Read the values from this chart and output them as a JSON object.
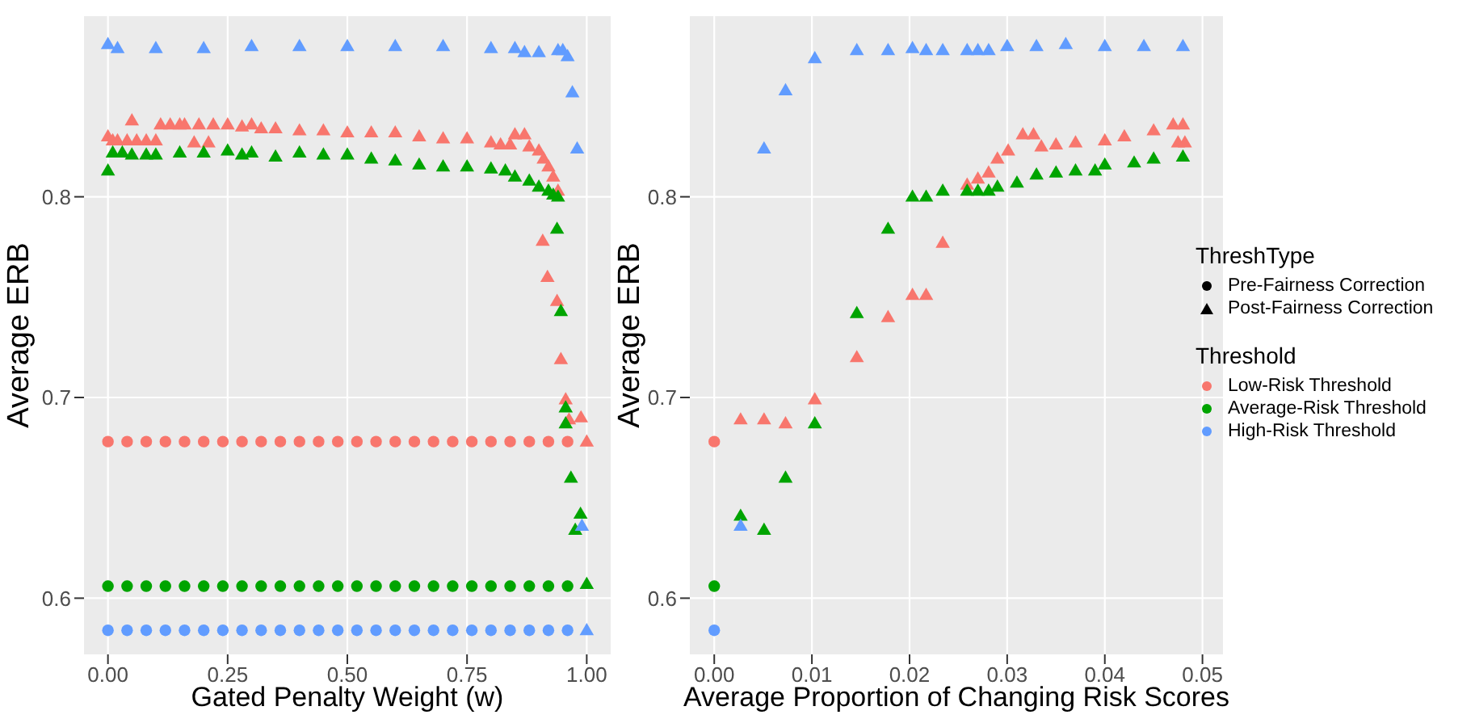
{
  "chart_data": [
    {
      "type": "scatter",
      "xlabel": "Gated Penalty Weight (w)",
      "ylabel": "Average ERB",
      "xlim": [
        -0.05,
        1.05
      ],
      "ylim": [
        0.572,
        0.89
      ],
      "xticks": [
        {
          "value": 0,
          "label": "0.00"
        },
        {
          "value": 0.25,
          "label": "0.25"
        },
        {
          "value": 0.5,
          "label": "0.50"
        },
        {
          "value": 0.75,
          "label": "0.75"
        },
        {
          "value": 1,
          "label": "1.00"
        }
      ],
      "yticks": [
        0.6,
        0.7,
        0.8
      ],
      "grid": true,
      "series": [
        {
          "color": "#f8766d",
          "marker": "circle",
          "x": [
            0,
            0.04,
            0.08,
            0.12,
            0.16,
            0.2,
            0.24,
            0.28,
            0.32,
            0.36,
            0.4,
            0.44,
            0.48,
            0.52,
            0.56,
            0.6,
            0.64,
            0.68,
            0.72,
            0.76,
            0.8,
            0.84,
            0.88,
            0.92,
            0.96
          ],
          "values": [
            0.678,
            0.678,
            0.678,
            0.678,
            0.678,
            0.678,
            0.678,
            0.678,
            0.678,
            0.678,
            0.678,
            0.678,
            0.678,
            0.678,
            0.678,
            0.678,
            0.678,
            0.678,
            0.678,
            0.678,
            0.678,
            0.678,
            0.678,
            0.678,
            0.678
          ]
        },
        {
          "color": "#00a400",
          "marker": "circle",
          "x": [
            0,
            0.04,
            0.08,
            0.12,
            0.16,
            0.2,
            0.24,
            0.28,
            0.32,
            0.36,
            0.4,
            0.44,
            0.48,
            0.52,
            0.56,
            0.6,
            0.64,
            0.68,
            0.72,
            0.76,
            0.8,
            0.84,
            0.88,
            0.92,
            0.96
          ],
          "values": [
            0.606,
            0.606,
            0.606,
            0.606,
            0.606,
            0.606,
            0.606,
            0.606,
            0.606,
            0.606,
            0.606,
            0.606,
            0.606,
            0.606,
            0.606,
            0.606,
            0.606,
            0.606,
            0.606,
            0.606,
            0.606,
            0.606,
            0.606,
            0.606,
            0.606
          ]
        },
        {
          "color": "#619cff",
          "marker": "circle",
          "x": [
            0,
            0.04,
            0.08,
            0.12,
            0.16,
            0.2,
            0.24,
            0.28,
            0.32,
            0.36,
            0.4,
            0.44,
            0.48,
            0.52,
            0.56,
            0.6,
            0.64,
            0.68,
            0.72,
            0.76,
            0.8,
            0.84,
            0.88,
            0.92,
            0.96
          ],
          "values": [
            0.584,
            0.584,
            0.584,
            0.584,
            0.584,
            0.584,
            0.584,
            0.584,
            0.584,
            0.584,
            0.584,
            0.584,
            0.584,
            0.584,
            0.584,
            0.584,
            0.584,
            0.584,
            0.584,
            0.584,
            0.584,
            0.584,
            0.584,
            0.584,
            0.584
          ]
        },
        {
          "color": "#f8766d",
          "marker": "triangle",
          "x": [
            0,
            0.01,
            0.02,
            0.04,
            0.05,
            0.06,
            0.08,
            0.1,
            0.11,
            0.13,
            0.15,
            0.16,
            0.18,
            0.19,
            0.21,
            0.22,
            0.25,
            0.28,
            0.3,
            0.32,
            0.35,
            0.4,
            0.45,
            0.5,
            0.55,
            0.6,
            0.65,
            0.7,
            0.75,
            0.8,
            0.82,
            0.84,
            0.85,
            0.87,
            0.88,
            0.9,
            0.91,
            0.92,
            0.93,
            0.94,
            0.908,
            0.918,
            0.938,
            0.946,
            0.956,
            0.963,
            0.988,
            1.0
          ],
          "values": [
            0.83,
            0.828,
            0.828,
            0.828,
            0.838,
            0.828,
            0.828,
            0.828,
            0.836,
            0.836,
            0.836,
            0.836,
            0.827,
            0.836,
            0.827,
            0.836,
            0.836,
            0.835,
            0.836,
            0.834,
            0.834,
            0.833,
            0.833,
            0.832,
            0.832,
            0.832,
            0.83,
            0.829,
            0.829,
            0.827,
            0.826,
            0.826,
            0.831,
            0.831,
            0.825,
            0.823,
            0.819,
            0.815,
            0.81,
            0.803,
            0.778,
            0.76,
            0.748,
            0.719,
            0.699,
            0.689,
            0.69,
            0.678
          ]
        },
        {
          "color": "#00a400",
          "marker": "triangle",
          "x": [
            0,
            0.01,
            0.03,
            0.05,
            0.08,
            0.1,
            0.15,
            0.2,
            0.25,
            0.28,
            0.3,
            0.35,
            0.4,
            0.45,
            0.5,
            0.55,
            0.6,
            0.65,
            0.7,
            0.75,
            0.8,
            0.83,
            0.85,
            0.88,
            0.9,
            0.92,
            0.93,
            0.94,
            0.938,
            0.946,
            0.956,
            0.956,
            0.967,
            0.976,
            0.987,
            1.0
          ],
          "values": [
            0.813,
            0.822,
            0.822,
            0.821,
            0.821,
            0.821,
            0.822,
            0.822,
            0.823,
            0.821,
            0.822,
            0.82,
            0.822,
            0.821,
            0.821,
            0.819,
            0.818,
            0.816,
            0.815,
            0.815,
            0.814,
            0.813,
            0.81,
            0.808,
            0.805,
            0.803,
            0.801,
            0.8,
            0.784,
            0.743,
            0.695,
            0.687,
            0.66,
            0.634,
            0.642,
            0.607
          ]
        },
        {
          "color": "#619cff",
          "marker": "triangle",
          "x": [
            0,
            0.02,
            0.1,
            0.2,
            0.3,
            0.4,
            0.5,
            0.6,
            0.7,
            0.8,
            0.85,
            0.87,
            0.9,
            0.94,
            0.95,
            0.96,
            0.97,
            0.98,
            0.99,
            1.0
          ],
          "values": [
            0.876,
            0.874,
            0.874,
            0.874,
            0.875,
            0.875,
            0.875,
            0.875,
            0.875,
            0.874,
            0.874,
            0.872,
            0.872,
            0.873,
            0.873,
            0.87,
            0.852,
            0.824,
            0.636,
            0.584
          ]
        }
      ]
    },
    {
      "type": "scatter",
      "xlabel": "Average Proportion of Changing Risk Scores",
      "ylabel": "Average ERB",
      "xlim": [
        -0.0025,
        0.0521
      ],
      "ylim": [
        0.572,
        0.89
      ],
      "xticks": [
        {
          "value": 0,
          "label": "0.00"
        },
        {
          "value": 0.01,
          "label": "0.01"
        },
        {
          "value": 0.02,
          "label": "0.02"
        },
        {
          "value": 0.03,
          "label": "0.03"
        },
        {
          "value": 0.04,
          "label": "0.04"
        },
        {
          "value": 0.05,
          "label": "0.05"
        }
      ],
      "yticks": [
        0.6,
        0.7,
        0.8
      ],
      "grid": true,
      "legend": "right",
      "legend_title": "Threshold",
      "annotations": [
        "ThreshType",
        "Pre-Fairness Correction",
        "Post-Fairness Correction"
      ],
      "series": [
        {
          "name": "Low-Risk Threshold",
          "color": "#f8766d",
          "marker": "circle",
          "x": [
            0
          ],
          "values": [
            0.678
          ]
        },
        {
          "name": "Average-Risk Threshold",
          "color": "#00a400",
          "marker": "circle",
          "x": [
            0
          ],
          "values": [
            0.606
          ]
        },
        {
          "name": "High-Risk Threshold",
          "color": "#619cff",
          "marker": "circle",
          "x": [
            0
          ],
          "values": [
            0.584
          ]
        },
        {
          "color": "#f8766d",
          "marker": "triangle",
          "x": [
            0.0027,
            0.0051,
            0.0073,
            0.0103,
            0.0146,
            0.0178,
            0.0203,
            0.0217,
            0.0234,
            0.0259,
            0.027,
            0.0281,
            0.029,
            0.0301,
            0.0316,
            0.0327,
            0.0335,
            0.035,
            0.037,
            0.04,
            0.042,
            0.045,
            0.047,
            0.048,
            0.0475,
            0.0482
          ],
          "values": [
            0.689,
            0.689,
            0.687,
            0.699,
            0.72,
            0.74,
            0.751,
            0.751,
            0.777,
            0.806,
            0.809,
            0.812,
            0.819,
            0.823,
            0.831,
            0.831,
            0.825,
            0.826,
            0.827,
            0.828,
            0.83,
            0.833,
            0.836,
            0.836,
            0.827,
            0.827
          ]
        },
        {
          "color": "#00a400",
          "marker": "triangle",
          "x": [
            0.0027,
            0.0051,
            0.0073,
            0.0103,
            0.0146,
            0.0178,
            0.0203,
            0.0217,
            0.0234,
            0.0259,
            0.027,
            0.0281,
            0.029,
            0.031,
            0.033,
            0.035,
            0.037,
            0.039,
            0.04,
            0.043,
            0.045,
            0.048
          ],
          "values": [
            0.641,
            0.634,
            0.66,
            0.687,
            0.742,
            0.784,
            0.8,
            0.8,
            0.803,
            0.803,
            0.803,
            0.803,
            0.805,
            0.807,
            0.811,
            0.812,
            0.813,
            0.813,
            0.816,
            0.817,
            0.819,
            0.82
          ]
        },
        {
          "color": "#619cff",
          "marker": "triangle",
          "x": [
            0.0027,
            0.0051,
            0.0073,
            0.0103,
            0.0146,
            0.0178,
            0.0203,
            0.0217,
            0.0234,
            0.0259,
            0.027,
            0.0281,
            0.03,
            0.033,
            0.036,
            0.04,
            0.044,
            0.048
          ],
          "values": [
            0.636,
            0.824,
            0.853,
            0.869,
            0.873,
            0.873,
            0.874,
            0.873,
            0.873,
            0.873,
            0.873,
            0.873,
            0.875,
            0.875,
            0.876,
            0.875,
            0.875,
            0.875
          ]
        }
      ]
    }
  ]
}
